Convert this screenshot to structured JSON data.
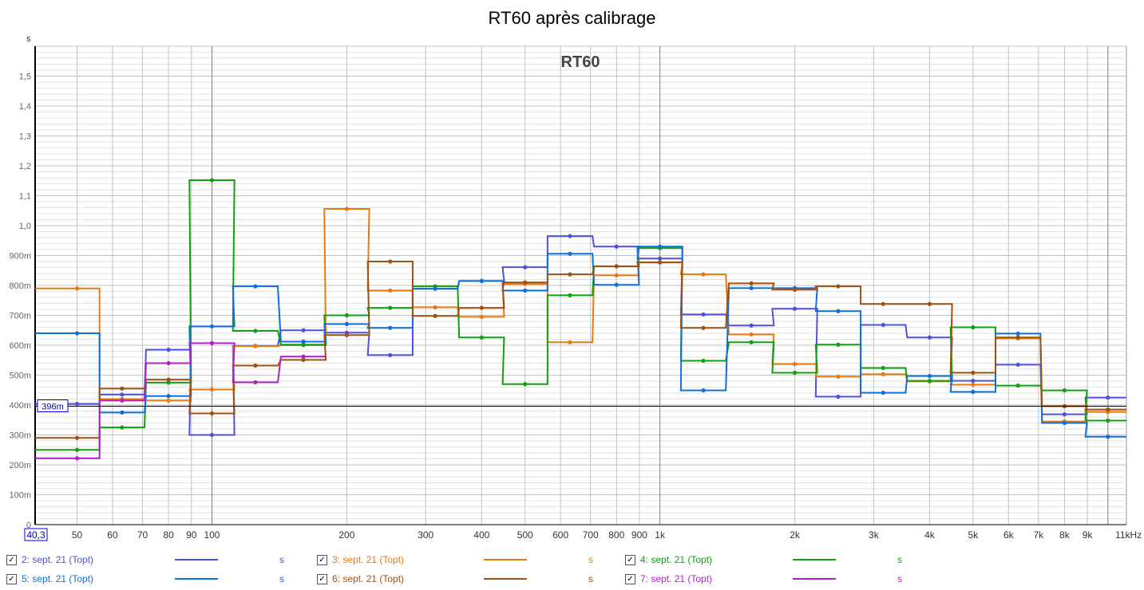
{
  "chart_data": {
    "type": "line",
    "title": "RT60 après calibrage",
    "inner_title": "RT60",
    "ylabel": "s",
    "xlabel": "",
    "x_scale": "log",
    "xlim": [
      40.3,
      11000
    ],
    "ylim": [
      0,
      1.6
    ],
    "grid": true,
    "marker_value": 0.396,
    "marker_label": "396m",
    "x_start_label": "40,3",
    "x_ticks": [
      {
        "v": 50,
        "l": "50"
      },
      {
        "v": 60,
        "l": "60"
      },
      {
        "v": 70,
        "l": "70"
      },
      {
        "v": 80,
        "l": "80"
      },
      {
        "v": 90,
        "l": "90"
      },
      {
        "v": 100,
        "l": "100"
      },
      {
        "v": 200,
        "l": "200"
      },
      {
        "v": 300,
        "l": "300"
      },
      {
        "v": 400,
        "l": "400"
      },
      {
        "v": 500,
        "l": "500"
      },
      {
        "v": 600,
        "l": "600"
      },
      {
        "v": 700,
        "l": "700"
      },
      {
        "v": 800,
        "l": "800"
      },
      {
        "v": 900,
        "l": "900"
      },
      {
        "v": 1000,
        "l": "1k"
      },
      {
        "v": 2000,
        "l": "2k"
      },
      {
        "v": 3000,
        "l": "3k"
      },
      {
        "v": 4000,
        "l": "4k"
      },
      {
        "v": 5000,
        "l": "5k"
      },
      {
        "v": 6000,
        "l": "6k"
      },
      {
        "v": 7000,
        "l": "7k"
      },
      {
        "v": 8000,
        "l": "8k"
      },
      {
        "v": 9000,
        "l": "9k"
      },
      {
        "v": 10500,
        "l": "11kHz"
      }
    ],
    "y_ticks": [
      {
        "v": 0,
        "l": "0"
      },
      {
        "v": 0.1,
        "l": "100m"
      },
      {
        "v": 0.2,
        "l": "200m"
      },
      {
        "v": 0.3,
        "l": "300m"
      },
      {
        "v": 0.4,
        "l": "400m"
      },
      {
        "v": 0.5,
        "l": "500m"
      },
      {
        "v": 0.6,
        "l": "600m"
      },
      {
        "v": 0.7,
        "l": "700m"
      },
      {
        "v": 0.8,
        "l": "800m"
      },
      {
        "v": 0.9,
        "l": "900m"
      },
      {
        "v": 1.0,
        "l": "1,0"
      },
      {
        "v": 1.1,
        "l": "1,1"
      },
      {
        "v": 1.2,
        "l": "1,2"
      },
      {
        "v": 1.3,
        "l": "1,3"
      },
      {
        "v": 1.4,
        "l": "1,4"
      },
      {
        "v": 1.5,
        "l": "1,5"
      }
    ],
    "x": [
      50,
      63,
      80,
      100,
      125,
      160,
      200,
      250,
      315,
      400,
      500,
      630,
      800,
      1000,
      1250,
      1600,
      2000,
      2500,
      3150,
      4000,
      5000,
      6300,
      8000,
      10000
    ],
    "series": [
      {
        "name": "2: sept. 21 (Topt)",
        "unit": "s",
        "color": "#5050d8",
        "values": [
          0.404,
          0.435,
          0.585,
          0.3,
          0.598,
          0.65,
          0.642,
          0.567,
          0.789,
          0.815,
          0.861,
          0.965,
          0.93,
          0.89,
          0.703,
          0.666,
          0.722,
          0.428,
          0.668,
          0.626,
          0.481,
          0.535,
          0.369,
          0.425
        ]
      },
      {
        "name": "3: sept. 21 (Topt)",
        "unit": "s",
        "color": "#e87a10",
        "values": [
          0.79,
          0.42,
          0.415,
          0.452,
          0.597,
          0.6,
          1.056,
          0.783,
          0.727,
          0.695,
          0.805,
          0.61,
          0.834,
          0.877,
          0.837,
          0.636,
          0.537,
          0.495,
          0.503,
          0.479,
          0.468,
          0.623,
          0.345,
          0.377
        ]
      },
      {
        "name": "4: sept. 21 (Topt)",
        "unit": "s",
        "color": "#10a010",
        "values": [
          0.25,
          0.325,
          0.475,
          1.152,
          0.648,
          0.602,
          0.7,
          0.725,
          0.797,
          0.626,
          0.47,
          0.767,
          0.864,
          0.925,
          0.548,
          0.61,
          0.508,
          0.602,
          0.524,
          0.481,
          0.66,
          0.465,
          0.449,
          0.348
        ]
      },
      {
        "name": "5: sept. 21 (Topt)",
        "unit": "s",
        "color": "#1070d8",
        "values": [
          0.64,
          0.375,
          0.43,
          0.663,
          0.797,
          0.612,
          0.671,
          0.658,
          0.789,
          0.815,
          0.783,
          0.906,
          0.802,
          0.93,
          0.449,
          0.791,
          0.791,
          0.714,
          0.441,
          0.497,
          0.444,
          0.639,
          0.34,
          0.294
        ]
      },
      {
        "name": "6: sept. 21 (Topt)",
        "unit": "s",
        "color": "#a05010",
        "values": [
          0.29,
          0.455,
          0.485,
          0.372,
          0.532,
          0.551,
          0.634,
          0.88,
          0.698,
          0.725,
          0.81,
          0.837,
          0.864,
          0.877,
          0.658,
          0.807,
          0.786,
          0.797,
          0.738,
          0.738,
          0.508,
          0.626,
          0.396,
          0.385
        ]
      },
      {
        "name": "7: sept. 21 (Topt)",
        "unit": "s",
        "color": "#b020c8",
        "values": [
          0.222,
          0.415,
          0.54,
          0.607,
          0.476,
          0.562,
          null,
          null,
          null,
          null,
          null,
          null,
          null,
          null,
          null,
          null,
          null,
          null,
          null,
          null,
          null,
          null,
          null,
          null
        ]
      }
    ]
  }
}
